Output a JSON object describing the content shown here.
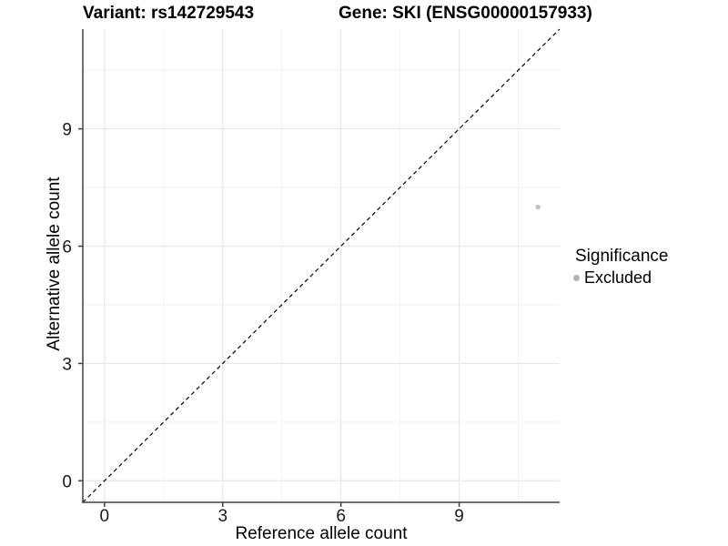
{
  "chart_data": {
    "type": "scatter",
    "title_left": "Variant: rs142729543",
    "title_right": "Gene: SKI (ENSG00000157933)",
    "xlabel": "Reference allele count",
    "ylabel": "Alternative allele count",
    "xlim": [
      -0.55,
      11.55
    ],
    "ylim": [
      -0.55,
      11.55
    ],
    "x_ticks": [
      0,
      3,
      6,
      9
    ],
    "y_ticks": [
      0,
      3,
      6,
      9
    ],
    "x_minor_gridlines": [
      1.5,
      4.5,
      7.5,
      10.5
    ],
    "y_minor_gridlines": [
      1.5,
      4.5,
      7.5,
      10.5
    ],
    "grid": true,
    "identity_line": {
      "slope": 1,
      "intercept": 0,
      "style": "dashed",
      "color": "#000000"
    },
    "points": [
      {
        "x": 11,
        "y": 7,
        "significance": "Excluded",
        "color": "#c2c2c2",
        "radius": 2.7
      }
    ],
    "legend": {
      "position": "right",
      "title": "Significance",
      "items": [
        {
          "label": "Excluded",
          "color": "#b3b3b3"
        }
      ]
    },
    "colors": {
      "background": "#ffffff",
      "grid_major": "#e8e8e8",
      "grid_minor": "#f2f2f2",
      "axis_line": "#404040",
      "tick_label": "#1a1a1a"
    }
  }
}
